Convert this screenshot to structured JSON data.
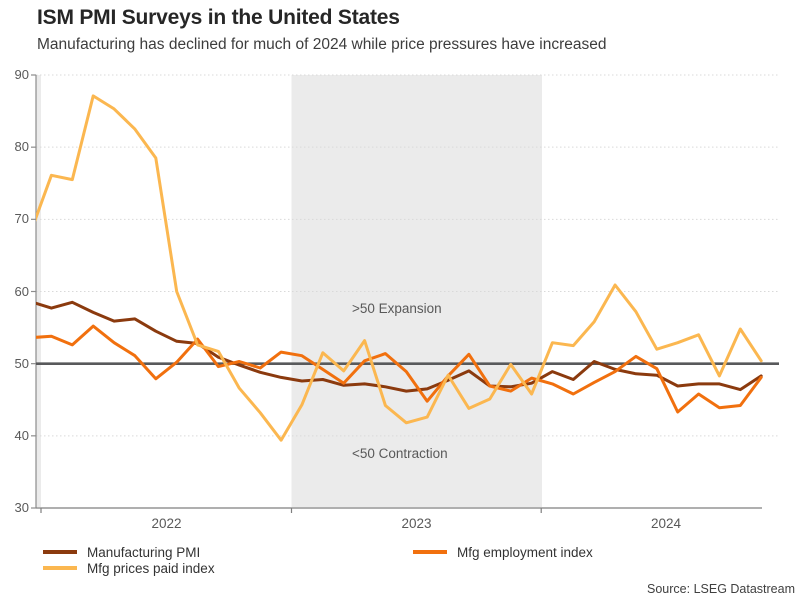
{
  "header": {
    "title": "ISM PMI Surveys in the United States",
    "subtitle": "Manufacturing has declined for much of 2024 while price pressures have increased"
  },
  "annotations": {
    "expansion": ">50 Expansion",
    "contraction": "<50 Contraction"
  },
  "source": "Source: LSEG Datastream",
  "legend": [
    {
      "label": "Manufacturing PMI",
      "color": "#8B3A0E"
    },
    {
      "label": "Mfg employment index",
      "color": "#F1700E"
    },
    {
      "label": "Mfg prices paid index",
      "color": "#FBB750"
    }
  ],
  "chart_data": {
    "type": "line",
    "title": "ISM PMI Surveys in the United States",
    "subtitle": "Manufacturing has declined for much of 2024 while price pressures have increased",
    "x_tick_labels": [
      "2022",
      "2023",
      "2024"
    ],
    "y_ticks": [
      30,
      40,
      50,
      60,
      70,
      80,
      90
    ],
    "ylim": [
      30,
      90
    ],
    "reference_line": 50,
    "grid": "dotted horizontal at 40,60,70,80,90; solid gray line at 50",
    "shaded_regions": "year 2023 shaded light gray; sliver of 2021 shading at left edge",
    "band_color": "#EBEBEB",
    "ref_line_color": "#58595B",
    "grid_color": "#D9D9D9",
    "axis_color": "#8C8C8C",
    "legend_position": "bottom-left, two rows",
    "x": [
      "Dec 2021",
      "Jan 2022",
      "Feb 2022",
      "Mar 2022",
      "Apr 2022",
      "May 2022",
      "Jun 2022",
      "Jul 2022",
      "Aug 2022",
      "Sep 2022",
      "Oct 2022",
      "Nov 2022",
      "Dec 2022",
      "Jan 2023",
      "Feb 2023",
      "Mar 2023",
      "Apr 2023",
      "May 2023",
      "Jun 2023",
      "Jul 2023",
      "Aug 2023",
      "Sep 2023",
      "Oct 2023",
      "Nov 2023",
      "Dec 2023",
      "Jan 2024",
      "Feb 2024",
      "Mar 2024",
      "Apr 2024",
      "May 2024",
      "Jun 2024",
      "Jul 2024",
      "Aug 2024",
      "Sep 2024",
      "Oct 2024",
      "Nov 2024"
    ],
    "series": [
      {
        "name": "Manufacturing PMI",
        "color": "#8B3A0E",
        "values": [
          58.6,
          57.7,
          58.5,
          57.1,
          55.9,
          56.2,
          54.5,
          53.1,
          52.8,
          50.9,
          49.8,
          48.8,
          48.1,
          47.6,
          47.8,
          47.0,
          47.2,
          46.8,
          46.2,
          46.5,
          47.7,
          49.0,
          46.9,
          46.8,
          47.3,
          48.9,
          47.8,
          50.3,
          49.2,
          48.6,
          48.4,
          46.9,
          47.2,
          47.2,
          46.4,
          48.3
        ]
      },
      {
        "name": "Mfg employment index",
        "color": "#F1700E",
        "values": [
          53.6,
          53.8,
          52.6,
          55.2,
          52.9,
          51.1,
          47.9,
          50.2,
          53.4,
          49.6,
          50.3,
          49.4,
          51.6,
          51.1,
          49.2,
          47.3,
          50.4,
          51.4,
          48.9,
          44.8,
          48.3,
          51.3,
          46.9,
          46.2,
          48.0,
          47.2,
          45.8,
          47.4,
          48.9,
          51.0,
          49.3,
          43.3,
          45.8,
          43.9,
          44.2,
          48.1
        ]
      },
      {
        "name": "Mfg prices paid index",
        "color": "#FBB750",
        "values": [
          68.2,
          76.1,
          75.5,
          87.1,
          85.3,
          82.5,
          78.5,
          60.0,
          52.6,
          51.7,
          46.6,
          43.2,
          39.4,
          44.3,
          51.5,
          49.0,
          53.2,
          44.2,
          41.8,
          42.6,
          48.4,
          43.8,
          45.1,
          49.9,
          45.8,
          52.9,
          52.5,
          55.8,
          60.9,
          57.2,
          52.0,
          52.9,
          54.0,
          48.3,
          54.8,
          50.4
        ]
      }
    ]
  }
}
